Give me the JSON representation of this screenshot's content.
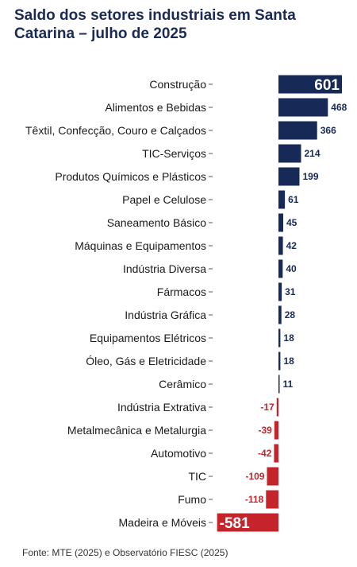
{
  "chart_data": {
    "type": "bar",
    "orientation": "horizontal",
    "title": "Saldo dos setores industriais em Santa Catarina – julho de 2025",
    "source": "Fonte: MTE (2025) e Observatório FIESC (2025)",
    "categories": [
      "Construção",
      "Alimentos e Bebidas",
      "Têxtil, Confecção, Couro e Calçados",
      "TIC-Serviços",
      "Produtos Químicos e Plásticos",
      "Papel e Celulose",
      "Saneamento Básico",
      "Máquinas e Equipamentos",
      "Indústria Diversa",
      "Fármacos",
      "Indústria Gráfica",
      "Equipamentos Elétricos",
      "Óleo, Gás e Eletricidade",
      "Cerâmico",
      "Indústria Extrativa",
      "Metalmecânica e Metalurgia",
      "Automotivo",
      "TIC",
      "Fumo",
      "Madeira e Móveis"
    ],
    "values": [
      601,
      468,
      366,
      214,
      199,
      61,
      45,
      42,
      40,
      31,
      28,
      18,
      18,
      11,
      -17,
      -39,
      -42,
      -109,
      -118,
      -581
    ],
    "xlim": [
      -581,
      601
    ],
    "colors": {
      "positive": "#172a57",
      "negative": "#c5242b"
    },
    "grid": false,
    "legend": "none"
  }
}
